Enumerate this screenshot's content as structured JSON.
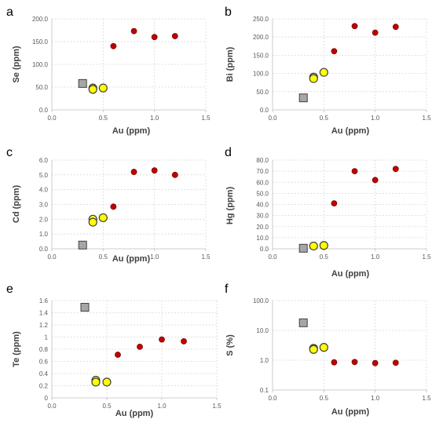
{
  "colors": {
    "red_marker_fill": "#c00000",
    "red_marker_stroke": "#7f0000",
    "yellow_marker_fill": "#ffff00",
    "yellow_marker_stroke": "#404040",
    "gray_marker_fill": "#a6a6a6",
    "gray_marker_stroke": "#404040"
  },
  "chart_data": [
    {
      "panel": "a",
      "type": "scatter",
      "xlabel": "Au (ppm)",
      "ylabel": "Se (ppm)",
      "xlim": [
        0,
        1.5
      ],
      "ylim": [
        0,
        200
      ],
      "yscale": "linear",
      "xticks": [
        "0.0",
        "0.5",
        "1.0",
        "1.5"
      ],
      "yticks": [
        "0.0",
        "50.0",
        "100.0",
        "150.0",
        "200.0"
      ],
      "grid": true,
      "series": [
        {
          "marker": "square",
          "color": "gray",
          "points": [
            {
              "x": 0.3,
              "y": 58
            }
          ]
        },
        {
          "marker": "circle",
          "color": "yellow",
          "points": [
            {
              "x": 0.4,
              "y": 48
            },
            {
              "x": 0.4,
              "y": 45
            },
            {
              "x": 0.5,
              "y": 48
            }
          ]
        },
        {
          "marker": "circle",
          "color": "red",
          "points": [
            {
              "x": 0.6,
              "y": 140
            },
            {
              "x": 0.8,
              "y": 173
            },
            {
              "x": 1.0,
              "y": 160
            },
            {
              "x": 1.2,
              "y": 162
            }
          ]
        }
      ]
    },
    {
      "panel": "b",
      "type": "scatter",
      "xlabel": "Au (ppm)",
      "ylabel": "Bi (ppm)",
      "xlim": [
        0,
        1.5
      ],
      "ylim": [
        0,
        250
      ],
      "yscale": "linear",
      "xticks": [
        "0.0",
        "0.5",
        "1.0",
        "1.5"
      ],
      "yticks": [
        "0.0",
        "50.0",
        "100.0",
        "150.0",
        "200.0",
        "250.0"
      ],
      "grid": true,
      "series": [
        {
          "marker": "square",
          "color": "gray",
          "points": [
            {
              "x": 0.3,
              "y": 33
            }
          ]
        },
        {
          "marker": "circle",
          "color": "yellow",
          "points": [
            {
              "x": 0.4,
              "y": 90
            },
            {
              "x": 0.4,
              "y": 86
            },
            {
              "x": 0.5,
              "y": 103
            }
          ]
        },
        {
          "marker": "circle",
          "color": "red",
          "points": [
            {
              "x": 0.6,
              "y": 161
            },
            {
              "x": 0.8,
              "y": 230
            },
            {
              "x": 1.0,
              "y": 212
            },
            {
              "x": 1.2,
              "y": 228
            }
          ]
        }
      ]
    },
    {
      "panel": "c",
      "type": "scatter",
      "xlabel": "Au (ppm)",
      "ylabel": "Cd (ppm)",
      "xlim": [
        0,
        1.5
      ],
      "ylim": [
        0,
        6
      ],
      "yscale": "linear",
      "xticks": [
        "0.0",
        "0.5",
        "1.0",
        "1.5"
      ],
      "yticks": [
        "0.0",
        "1.0",
        "2.0",
        "3.0",
        "4.0",
        "5.0",
        "6.0"
      ],
      "grid": true,
      "series": [
        {
          "marker": "square",
          "color": "gray",
          "points": [
            {
              "x": 0.3,
              "y": 0.25
            }
          ]
        },
        {
          "marker": "circle",
          "color": "yellow",
          "points": [
            {
              "x": 0.4,
              "y": 2.0
            },
            {
              "x": 0.4,
              "y": 1.8
            },
            {
              "x": 0.5,
              "y": 2.1
            }
          ]
        },
        {
          "marker": "circle",
          "color": "red",
          "points": [
            {
              "x": 0.6,
              "y": 2.85
            },
            {
              "x": 0.8,
              "y": 5.2
            },
            {
              "x": 1.0,
              "y": 5.3
            },
            {
              "x": 1.2,
              "y": 5.0
            }
          ]
        }
      ]
    },
    {
      "panel": "d",
      "type": "scatter",
      "xlabel": "Au (ppm)",
      "ylabel": "Hg (ppm)",
      "xlim": [
        0,
        1.5
      ],
      "ylim": [
        0,
        80
      ],
      "yscale": "linear",
      "xticks": [
        "0.0",
        "0.5",
        "1.0",
        "1.5"
      ],
      "yticks": [
        "0.0",
        "10.0",
        "20.0",
        "30.0",
        "40.0",
        "50.0",
        "60.0",
        "70.0",
        "80.0"
      ],
      "grid": true,
      "series": [
        {
          "marker": "square",
          "color": "gray",
          "points": [
            {
              "x": 0.3,
              "y": 0.5
            }
          ]
        },
        {
          "marker": "circle",
          "color": "yellow",
          "points": [
            {
              "x": 0.4,
              "y": 2.5
            },
            {
              "x": 0.5,
              "y": 3.0
            }
          ]
        },
        {
          "marker": "circle",
          "color": "red",
          "points": [
            {
              "x": 0.6,
              "y": 41
            },
            {
              "x": 0.8,
              "y": 70
            },
            {
              "x": 1.0,
              "y": 62
            },
            {
              "x": 1.2,
              "y": 72
            }
          ]
        }
      ]
    },
    {
      "panel": "e",
      "type": "scatter",
      "xlabel": "Au (ppm)",
      "ylabel": "Te (ppm)",
      "xlim": [
        0,
        1.5
      ],
      "ylim": [
        0,
        1.6
      ],
      "yscale": "linear",
      "xticks": [
        "0.0",
        "0.5",
        "1.0",
        "1.5"
      ],
      "yticks": [
        "0",
        "0.2",
        "0.4",
        "0.6",
        "0.8",
        "1",
        "1.2",
        "1.4",
        "1.6"
      ],
      "grid": true,
      "series": [
        {
          "marker": "square",
          "color": "gray",
          "points": [
            {
              "x": 0.3,
              "y": 1.49
            }
          ]
        },
        {
          "marker": "circle",
          "color": "yellow",
          "points": [
            {
              "x": 0.4,
              "y": 0.29
            },
            {
              "x": 0.4,
              "y": 0.26
            },
            {
              "x": 0.5,
              "y": 0.26
            }
          ]
        },
        {
          "marker": "circle",
          "color": "red",
          "points": [
            {
              "x": 0.6,
              "y": 0.71
            },
            {
              "x": 0.8,
              "y": 0.84
            },
            {
              "x": 1.0,
              "y": 0.96
            },
            {
              "x": 1.2,
              "y": 0.93
            }
          ]
        }
      ]
    },
    {
      "panel": "f",
      "type": "scatter",
      "xlabel": "Au (ppm)",
      "ylabel": "S (%)",
      "xlim": [
        0,
        1.5
      ],
      "ylim": [
        0.1,
        100
      ],
      "yscale": "log",
      "xticks": [
        "0.0",
        "0.5",
        "1.0",
        "1.5"
      ],
      "yticks": [
        "0.1",
        "1.0",
        "10.0",
        "100.0"
      ],
      "grid": true,
      "series": [
        {
          "marker": "square",
          "color": "gray",
          "points": [
            {
              "x": 0.3,
              "y": 18
            }
          ]
        },
        {
          "marker": "circle",
          "color": "yellow",
          "points": [
            {
              "x": 0.4,
              "y": 2.5
            },
            {
              "x": 0.4,
              "y": 2.3
            },
            {
              "x": 0.5,
              "y": 2.7
            }
          ]
        },
        {
          "marker": "circle",
          "color": "red",
          "points": [
            {
              "x": 0.6,
              "y": 0.85
            },
            {
              "x": 0.8,
              "y": 0.87
            },
            {
              "x": 1.0,
              "y": 0.8
            },
            {
              "x": 1.2,
              "y": 0.82
            }
          ]
        }
      ]
    }
  ]
}
